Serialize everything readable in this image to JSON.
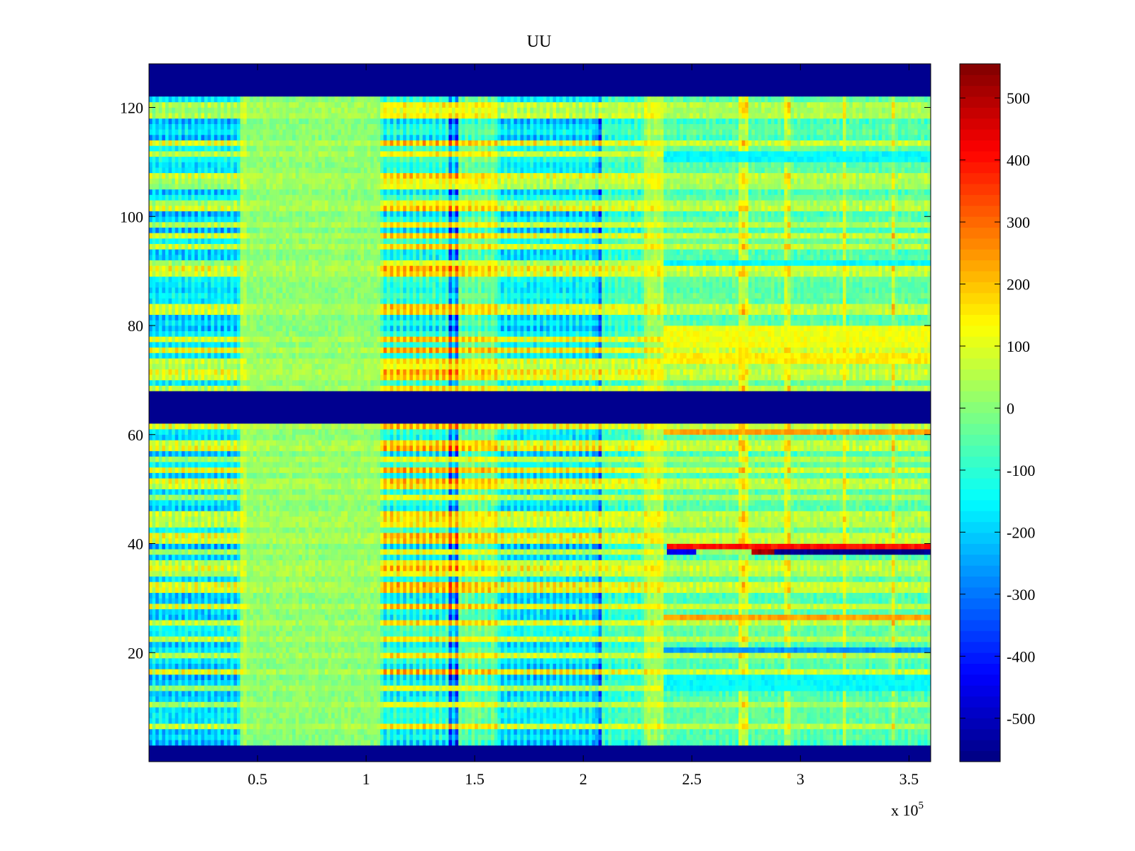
{
  "chart_data": {
    "type": "heatmap",
    "title": "UU",
    "xlabel": "",
    "ylabel": "",
    "x_multiplier_label": "x 10",
    "x_multiplier_exponent": "5",
    "xlim": [
      0,
      360000
    ],
    "ylim": [
      0,
      128
    ],
    "x_ticks": [
      {
        "value": 50000,
        "label": "0.5"
      },
      {
        "value": 100000,
        "label": "1"
      },
      {
        "value": 150000,
        "label": "1.5"
      },
      {
        "value": 200000,
        "label": "2"
      },
      {
        "value": 250000,
        "label": "2.5"
      },
      {
        "value": 300000,
        "label": "3"
      },
      {
        "value": 350000,
        "label": "3.5"
      }
    ],
    "y_ticks": [
      {
        "value": 20,
        "label": "20"
      },
      {
        "value": 40,
        "label": "40"
      },
      {
        "value": 60,
        "label": "60"
      },
      {
        "value": 80,
        "label": "80"
      },
      {
        "value": 100,
        "label": "100"
      },
      {
        "value": 120,
        "label": "120"
      }
    ],
    "colorbar": {
      "colormap": "jet",
      "clim": [
        -570,
        555
      ],
      "ticks": [
        {
          "value": 500,
          "label": "500"
        },
        {
          "value": 400,
          "label": "400"
        },
        {
          "value": 300,
          "label": "300"
        },
        {
          "value": 200,
          "label": "200"
        },
        {
          "value": 100,
          "label": "100"
        },
        {
          "value": 0,
          "label": "0"
        },
        {
          "value": -100,
          "label": "-100"
        },
        {
          "value": -200,
          "label": "-200"
        },
        {
          "value": -300,
          "label": "-300"
        },
        {
          "value": -400,
          "label": "-400"
        },
        {
          "value": -500,
          "label": "-500"
        }
      ]
    },
    "masked_row_bands": [
      [
        0,
        3
      ],
      [
        62,
        68
      ],
      [
        122,
        128
      ]
    ],
    "time_segments": [
      {
        "x": [
          0,
          42000
        ],
        "mean": -60,
        "amplitude": 230
      },
      {
        "x": [
          42000,
          45000
        ],
        "mean": 60,
        "amplitude": 60
      },
      {
        "x": [
          45000,
          107000
        ],
        "mean": 20,
        "amplitude": 30
      },
      {
        "x": [
          107000,
          138000
        ],
        "mean": 20,
        "amplitude": 260
      },
      {
        "x": [
          138000,
          142000
        ],
        "mean": -40,
        "amplitude": 420
      },
      {
        "x": [
          142000,
          160000
        ],
        "mean": 50,
        "amplitude": 180
      },
      {
        "x": [
          160000,
          205000
        ],
        "mean": -40,
        "amplitude": 240
      },
      {
        "x": [
          205000,
          209000
        ],
        "mean": -90,
        "amplitude": 340
      },
      {
        "x": [
          209000,
          228000
        ],
        "mean": 0,
        "amplitude": 160
      },
      {
        "x": [
          228000,
          237000
        ],
        "mean": 80,
        "amplitude": 90
      },
      {
        "x": [
          237000,
          360000
        ],
        "mean": 0,
        "amplitude": 100
      }
    ],
    "vertical_streaks": [
      {
        "x": 272000,
        "delta": 160
      },
      {
        "x": 274500,
        "delta": 160
      },
      {
        "x": 294000,
        "delta": 150
      },
      {
        "x": 320000,
        "delta": 150
      },
      {
        "x": 343000,
        "delta": 150
      }
    ],
    "horizontal_features": [
      {
        "rows": [
          39,
          40
        ],
        "x": [
          239000,
          360000
        ],
        "value": 400
      },
      {
        "rows": [
          38,
          39
        ],
        "x": [
          239000,
          252000
        ],
        "value": -450
      },
      {
        "rows": [
          38,
          39
        ],
        "x": [
          252000,
          278000
        ],
        "value": 20
      },
      {
        "rows": [
          38,
          39
        ],
        "x": [
          278000,
          288000
        ],
        "value": 520
      },
      {
        "rows": [
          38,
          39
        ],
        "x": [
          288000,
          360000
        ],
        "value": -560
      },
      {
        "rows": [
          60,
          61
        ],
        "x": [
          237000,
          360000
        ],
        "value": 230
      },
      {
        "rows": [
          26,
          27
        ],
        "x": [
          237000,
          360000
        ],
        "value": 230
      },
      {
        "rows": [
          20,
          21
        ],
        "x": [
          237000,
          360000
        ],
        "value": -260
      },
      {
        "rows": [
          13,
          16
        ],
        "x": [
          237000,
          360000
        ],
        "value": -150
      },
      {
        "rows": [
          73,
          75
        ],
        "x": [
          237000,
          360000
        ],
        "value": 150
      },
      {
        "rows": [
          76,
          80
        ],
        "x": [
          237000,
          360000
        ],
        "value": 120
      },
      {
        "rows": [
          110,
          112
        ],
        "x": [
          237000,
          360000
        ],
        "value": -150
      },
      {
        "rows": [
          91,
          92
        ],
        "x": [
          237000,
          360000
        ],
        "value": -150
      }
    ]
  }
}
